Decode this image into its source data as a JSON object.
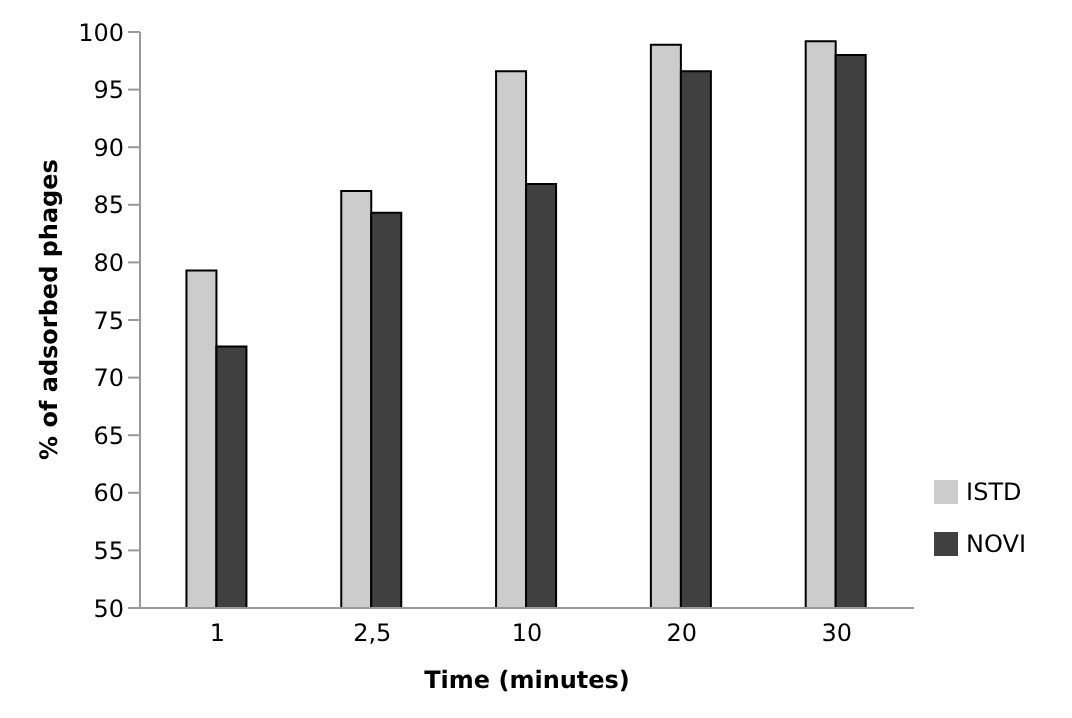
{
  "chart_data": {
    "type": "bar",
    "xlabel": "Time (minutes)",
    "ylabel": "% of adsorbed  phages",
    "categories": [
      "1",
      "2,5",
      "10",
      "20",
      "30"
    ],
    "series": [
      {
        "name": "ISTD",
        "color": "#cccccc",
        "values": [
          79.3,
          86.2,
          96.6,
          98.9,
          99.2
        ]
      },
      {
        "name": "NOVI",
        "color": "#404040",
        "values": [
          72.7,
          84.3,
          86.8,
          96.6,
          98.0
        ]
      }
    ],
    "ylim": [
      50,
      100
    ],
    "yticks": [
      50,
      55,
      60,
      65,
      70,
      75,
      80,
      85,
      90,
      95,
      100
    ],
    "grid": false,
    "legend": "right"
  }
}
